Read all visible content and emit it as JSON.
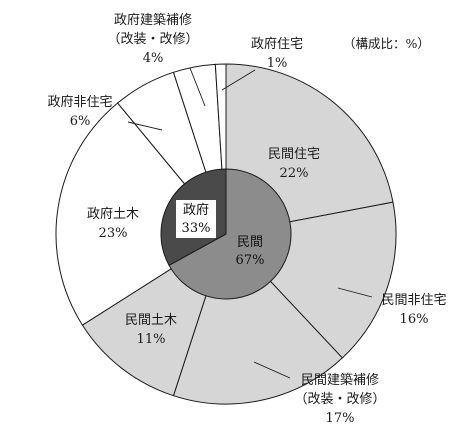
{
  "chart_data": {
    "type": "pie",
    "unit_note": "（構成比：%）",
    "inner_ring": {
      "slices": [
        {
          "name": "民間",
          "value": 67,
          "label": "67%"
        },
        {
          "name": "政府",
          "value": 33,
          "label": "33%"
        }
      ]
    },
    "outer_ring": {
      "slices": [
        {
          "name": "民間住宅",
          "value": 22,
          "label": "22%"
        },
        {
          "name": "民間非住宅",
          "value": 16,
          "label": "16%"
        },
        {
          "name": "民間建築補修",
          "name2": "（改装・改修）",
          "value": 17,
          "label": "17%"
        },
        {
          "name": "民間土木",
          "value": 11,
          "label": "11%"
        },
        {
          "name": "政府土木",
          "value": 23,
          "label": "23%"
        },
        {
          "name": "政府非住宅",
          "value": 6,
          "label": "6%"
        },
        {
          "name": "政府建築補修",
          "name2": "（改装・改修）",
          "value": 4,
          "label": "4%"
        },
        {
          "name": "政府住宅",
          "value": 1,
          "label": "1%"
        }
      ]
    }
  },
  "colors": {
    "private_outer": "#d6d6d6",
    "government_outer": "#ffffff",
    "private_inner": "#8c8c8c",
    "government_inner": "#4a4a4a",
    "stroke": "#1a1a1a"
  }
}
